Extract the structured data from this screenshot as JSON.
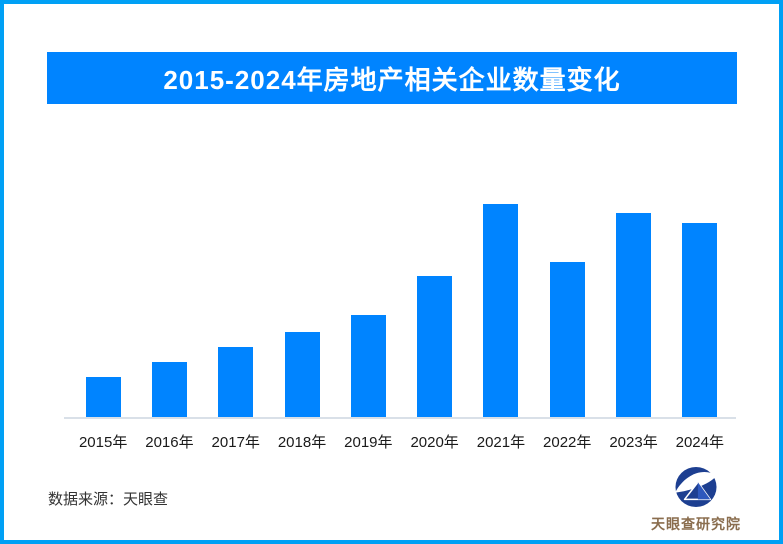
{
  "page": {
    "background": "#ffffff",
    "border_color": "#00a0f5"
  },
  "header": {
    "title": "2015-2024年房地产相关企业数量变化",
    "background": "#0084ff",
    "text_color": "#ffffff"
  },
  "chart_data": {
    "type": "bar",
    "title": "2015-2024年房地产相关企业数量变化",
    "categories": [
      "2015年",
      "2016年",
      "2017年",
      "2018年",
      "2019年",
      "2020年",
      "2021年",
      "2022年",
      "2023年",
      "2024年"
    ],
    "values": [
      19,
      26,
      33,
      40,
      48,
      66,
      100,
      73,
      96,
      91
    ],
    "value_note": "no numeric axis or data labels shown; values are relative bar heights with max bar (2021) = 100",
    "bar_color": "#0084ff",
    "axis_line_color": "#d9e0e8",
    "xlabel": "",
    "ylabel": "",
    "ylim": [
      0,
      100
    ],
    "grid": false,
    "legend": false
  },
  "footer": {
    "source": "数据来源：天眼查",
    "brand": "天眼查研究院",
    "brand_text_color": "#8a6d4e",
    "logo_color": "#1d3f91",
    "logo_icon": "tianyancha-eagle-eye-circle"
  }
}
